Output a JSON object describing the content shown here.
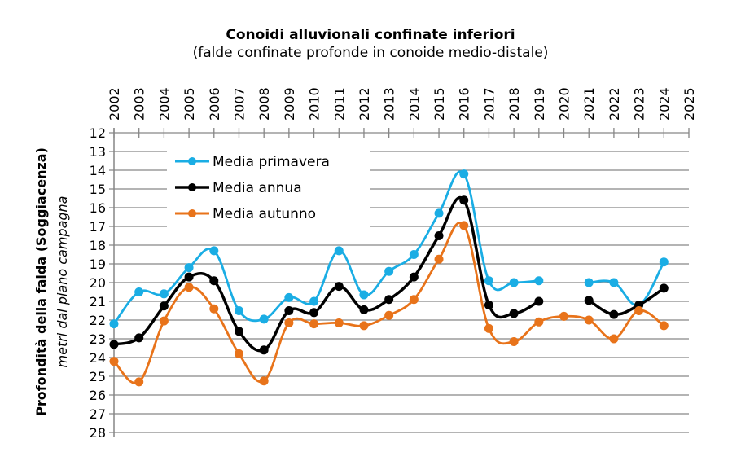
{
  "chart_data": {
    "type": "line",
    "title": "Conoidi alluvionali confinate inferiori",
    "subtitle": "(falde confinate  profonde in conoide medio-distale)",
    "ylabel": "Profondità della falda (Soggiacenza)",
    "ylabel2": "metri dal piano campagna",
    "xlabel": "",
    "ylim": [
      12,
      28
    ],
    "y_inverted": true,
    "y_ticks": [
      "12",
      "13",
      "14",
      "15",
      "16",
      "17",
      "18",
      "19",
      "20",
      "21",
      "22",
      "23",
      "24",
      "25",
      "26",
      "27",
      "28"
    ],
    "x_ticks": [
      "2002",
      "2003",
      "2004",
      "2005",
      "2006",
      "2007",
      "2008",
      "2009",
      "2010",
      "2011",
      "2012",
      "2013",
      "2014",
      "2015",
      "2016",
      "2017",
      "2018",
      "2019",
      "2020",
      "2021",
      "2022",
      "2023",
      "2024",
      "2025"
    ],
    "x": [
      2002,
      2003,
      2004,
      2005,
      2006,
      2007,
      2008,
      2009,
      2010,
      2011,
      2012,
      2013,
      2014,
      2015,
      2016,
      2017,
      2018,
      2019,
      2020,
      2021,
      2022,
      2023,
      2024
    ],
    "grid": true,
    "legend_position": "top-left",
    "series": [
      {
        "name": "Media primavera",
        "color": "#1AADE4",
        "values": [
          22.2,
          20.5,
          20.6,
          19.2,
          18.3,
          21.5,
          21.95,
          20.8,
          21.0,
          18.3,
          20.65,
          19.4,
          18.5,
          16.3,
          14.2,
          19.9,
          20.0,
          19.9,
          null,
          20.0,
          20.0,
          21.2,
          18.9
        ]
      },
      {
        "name": "Media annua",
        "color": "#000000",
        "values": [
          23.3,
          22.95,
          21.25,
          19.7,
          19.9,
          22.6,
          23.6,
          21.5,
          21.6,
          20.2,
          21.45,
          20.9,
          19.7,
          17.5,
          15.6,
          21.2,
          21.65,
          21.0,
          null,
          20.95,
          21.7,
          21.2,
          20.3
        ]
      },
      {
        "name": "Media autunno",
        "color": "#E8731A",
        "values": [
          24.2,
          25.3,
          22.05,
          20.25,
          21.4,
          23.8,
          25.25,
          22.15,
          22.2,
          22.15,
          22.3,
          21.75,
          20.9,
          18.75,
          16.95,
          22.45,
          23.15,
          22.1,
          21.8,
          22.0,
          23.0,
          21.5,
          22.3
        ]
      }
    ]
  }
}
